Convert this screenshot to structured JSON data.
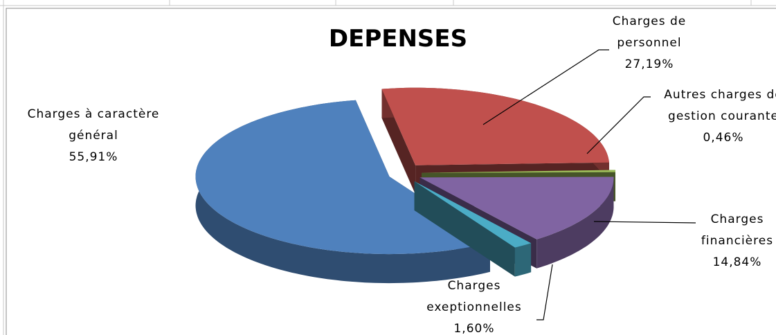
{
  "chart_data": {
    "type": "pie",
    "title": "DEPENSES",
    "categories": [
      "Charges de personnel",
      "Autres charges de gestion courante",
      "Charges financières",
      "Charges exeptionnelles",
      "Charges à caractère général"
    ],
    "values": [
      27.19,
      0.46,
      14.84,
      1.6,
      55.91
    ],
    "value_labels": [
      "27,19%",
      "0,46%",
      "14,84%",
      "1,60%",
      "55,91%"
    ],
    "colors": [
      "#c0504d",
      "#9bbb59",
      "#8064a2",
      "#4bacc6",
      "#4f81bd"
    ]
  }
}
